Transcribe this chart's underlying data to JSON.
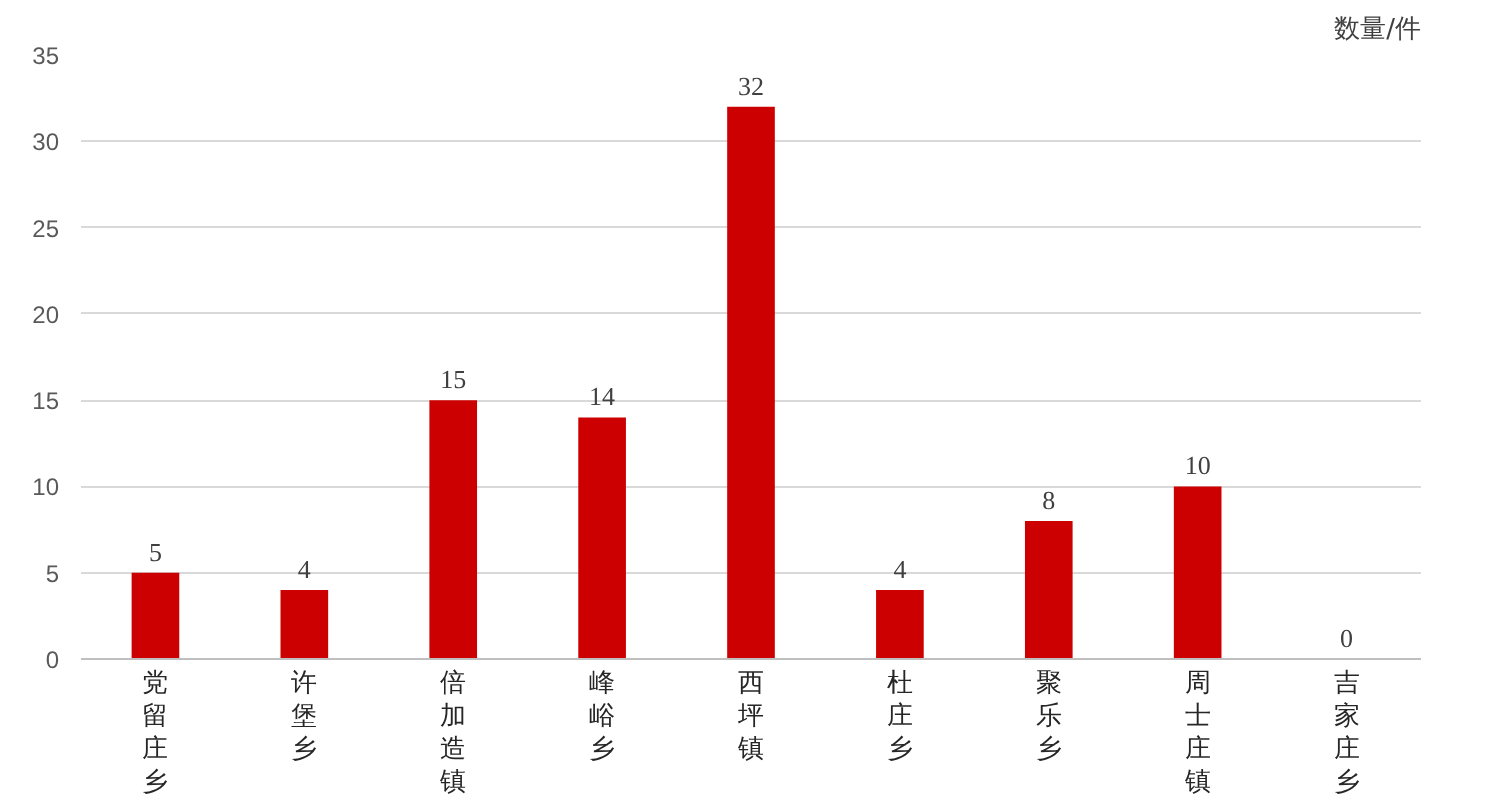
{
  "chart_data": {
    "type": "bar",
    "ylabel": "数量/件",
    "categories": [
      "党留庄乡",
      "许堡乡",
      "倍加造镇",
      "峰峪乡",
      "西坪镇",
      "杜庄乡",
      "聚乐乡",
      "周士庄镇",
      "吉家庄乡"
    ],
    "values": [
      5,
      4,
      15,
      14,
      32,
      4,
      8,
      10,
      0
    ],
    "color": "#cc0000",
    "ylim": [
      0,
      35
    ],
    "yticks": [
      0,
      5,
      10,
      15,
      20,
      25,
      30,
      35
    ],
    "grid": "y",
    "data_labels": true
  }
}
